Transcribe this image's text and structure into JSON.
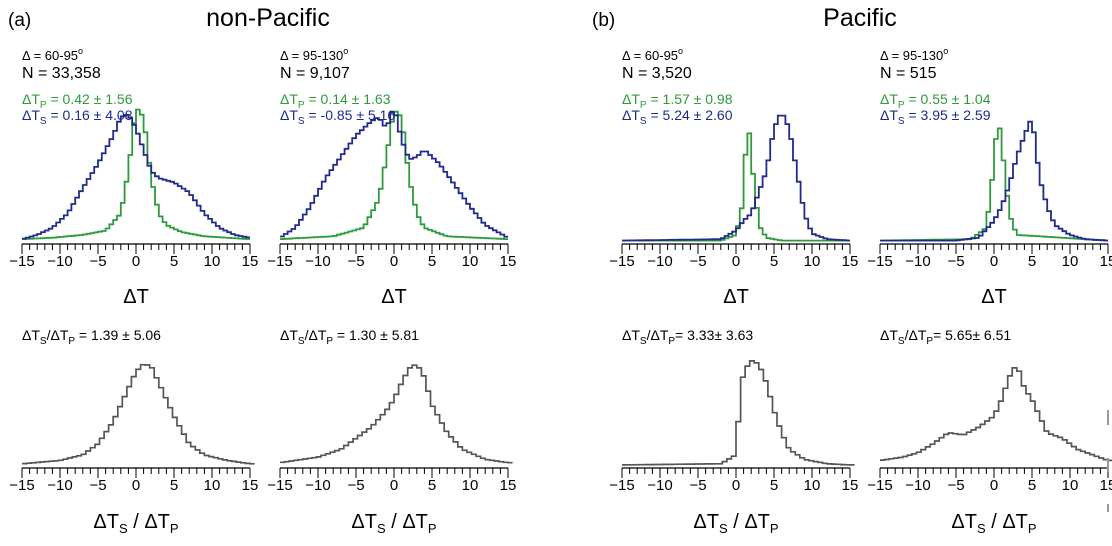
{
  "panels": [
    {
      "letter": "(a)",
      "title": "non-Pacific"
    },
    {
      "letter": "(b)",
      "title": "Pacific"
    }
  ],
  "colors": {
    "p": "#2e9a3c",
    "s": "#1f2a8a",
    "ratio": "#555555",
    "axis": "#000000"
  },
  "chart_data": [
    {
      "type": "line",
      "group": "non-Pacific",
      "annotations": [
        "Δ = 60-95°",
        "N = 33,358",
        "ΔTP = 0.42 ± 1.56",
        "ΔTS = 0.16 ± 4.08"
      ],
      "range_label": "Δ = 60-95",
      "range_deg": "o",
      "n_label": "N = 33,358",
      "p_stat": " = 0.42 ± 1.56",
      "s_stat": " = 0.16 ± 4.08",
      "xlabel": "ΔT",
      "xlim": [
        -15,
        15
      ],
      "xticks": [
        -15,
        -10,
        -5,
        0,
        5,
        10,
        15
      ],
      "series": [
        {
          "key": "P",
          "values": [
            [
              -15,
              0.02
            ],
            [
              -11,
              0.03
            ],
            [
              -7,
              0.05
            ],
            [
              -4,
              0.08
            ],
            [
              -2,
              0.2
            ],
            [
              -1,
              0.5
            ],
            [
              0,
              0.95
            ],
            [
              1,
              0.88
            ],
            [
              2,
              0.45
            ],
            [
              3,
              0.2
            ],
            [
              4,
              0.12
            ],
            [
              6,
              0.07
            ],
            [
              9,
              0.04
            ],
            [
              15,
              0.02
            ]
          ]
        },
        {
          "key": "S",
          "values": [
            [
              -15,
              0.02
            ],
            [
              -13,
              0.05
            ],
            [
              -11,
              0.1
            ],
            [
              -9,
              0.2
            ],
            [
              -7,
              0.38
            ],
            [
              -5,
              0.55
            ],
            [
              -3,
              0.75
            ],
            [
              -2,
              0.88
            ],
            [
              -1,
              0.9
            ],
            [
              0,
              0.8
            ],
            [
              1,
              0.65
            ],
            [
              2,
              0.5
            ],
            [
              3,
              0.45
            ],
            [
              5,
              0.42
            ],
            [
              7,
              0.35
            ],
            [
              9,
              0.2
            ],
            [
              11,
              0.1
            ],
            [
              13,
              0.05
            ],
            [
              15,
              0.03
            ]
          ]
        }
      ]
    },
    {
      "type": "line",
      "group": "non-Pacific",
      "annotations": [
        "Δ = 95-130°",
        "N = 9,107",
        "ΔTP = 0.14 ± 1.63",
        "ΔTS = -0.85 ± 5.16"
      ],
      "range_label": "Δ = 95-130",
      "range_deg": "o",
      "n_label": "N = 9,107",
      "p_stat": " = 0.14 ± 1.63",
      "s_stat": " = -0.85 ± 5.16",
      "xlabel": "ΔT",
      "xlim": [
        -15,
        15
      ],
      "xticks": [
        -15,
        -10,
        -5,
        0,
        5,
        10,
        15
      ],
      "series": [
        {
          "key": "P",
          "values": [
            [
              -15,
              0.02
            ],
            [
              -8,
              0.04
            ],
            [
              -4,
              0.1
            ],
            [
              -2,
              0.3
            ],
            [
              -1,
              0.6
            ],
            [
              0,
              0.93
            ],
            [
              1,
              0.88
            ],
            [
              2,
              0.45
            ],
            [
              3,
              0.2
            ],
            [
              4,
              0.1
            ],
            [
              7,
              0.04
            ],
            [
              15,
              0.02
            ]
          ]
        },
        {
          "key": "S",
          "values": [
            [
              -15,
              0.03
            ],
            [
              -13,
              0.1
            ],
            [
              -11,
              0.25
            ],
            [
              -9,
              0.45
            ],
            [
              -7,
              0.6
            ],
            [
              -5,
              0.75
            ],
            [
              -3,
              0.85
            ],
            [
              -2,
              0.88
            ],
            [
              -1,
              0.8
            ],
            [
              0,
              0.95
            ],
            [
              1,
              0.72
            ],
            [
              2,
              0.58
            ],
            [
              3,
              0.6
            ],
            [
              4,
              0.65
            ],
            [
              6,
              0.55
            ],
            [
              8,
              0.4
            ],
            [
              10,
              0.25
            ],
            [
              12,
              0.12
            ],
            [
              15,
              0.03
            ]
          ]
        }
      ]
    },
    {
      "type": "line",
      "group": "Pacific",
      "annotations": [
        "Δ = 60-95°",
        "N = 3,520",
        "ΔTP = 1.57 ± 0.98",
        "ΔTS = 5.24 ± 2.60"
      ],
      "range_label": "Δ = 60-95",
      "range_deg": "o",
      "n_label": "N = 3,520",
      "p_stat": " = 1.57 ± 0.98",
      "s_stat": " = 5.24 ± 2.60",
      "xlabel": "ΔT",
      "xlim": [
        -15,
        15
      ],
      "xticks": [
        -15,
        -10,
        -5,
        0,
        5,
        10,
        15
      ],
      "series": [
        {
          "key": "P",
          "values": [
            [
              -15,
              0.01
            ],
            [
              -2,
              0.01
            ],
            [
              0,
              0.05
            ],
            [
              1,
              0.3
            ],
            [
              1.5,
              0.93
            ],
            [
              2,
              0.6
            ],
            [
              3,
              0.12
            ],
            [
              4,
              0.03
            ],
            [
              6,
              0.01
            ],
            [
              15,
              0.01
            ]
          ]
        },
        {
          "key": "S",
          "values": [
            [
              -15,
              0.01
            ],
            [
              -2,
              0.02
            ],
            [
              0,
              0.08
            ],
            [
              1,
              0.15
            ],
            [
              2,
              0.2
            ],
            [
              3,
              0.35
            ],
            [
              4,
              0.5
            ],
            [
              5,
              0.8
            ],
            [
              6,
              0.92
            ],
            [
              7,
              0.8
            ],
            [
              8,
              0.5
            ],
            [
              9,
              0.2
            ],
            [
              10,
              0.06
            ],
            [
              12,
              0.02
            ],
            [
              15,
              0.01
            ]
          ]
        }
      ]
    },
    {
      "type": "line",
      "group": "Pacific",
      "annotations": [
        "Δ = 95-130°",
        "N = 515",
        "ΔTP = 0.55 ± 1.04",
        "ΔTS = 3.95 ± 2.59"
      ],
      "range_label": "Δ = 95-130",
      "range_deg": "o",
      "n_label": "N = 515",
      "p_stat": " = 0.55 ± 1.04",
      "s_stat": " = 3.95 ± 2.59",
      "xlabel": "ΔT",
      "xlim": [
        -15,
        15
      ],
      "xticks": [
        -15,
        -10,
        -5,
        0,
        5,
        10,
        15
      ],
      "series": [
        {
          "key": "P",
          "values": [
            [
              -15,
              0.01
            ],
            [
              -3,
              0.02
            ],
            [
              -1,
              0.1
            ],
            [
              0,
              0.55
            ],
            [
              0.5,
              0.9
            ],
            [
              1,
              0.7
            ],
            [
              2,
              0.2
            ],
            [
              3,
              0.05
            ],
            [
              15,
              0.01
            ]
          ]
        },
        {
          "key": "S",
          "values": [
            [
              -15,
              0.01
            ],
            [
              -5,
              0.01
            ],
            [
              -2,
              0.03
            ],
            [
              0,
              0.15
            ],
            [
              1,
              0.25
            ],
            [
              2,
              0.4
            ],
            [
              3,
              0.6
            ],
            [
              4,
              0.75
            ],
            [
              5,
              0.88
            ],
            [
              6,
              0.45
            ],
            [
              7,
              0.25
            ],
            [
              8,
              0.12
            ],
            [
              10,
              0.05
            ],
            [
              12,
              0.02
            ],
            [
              15,
              0.01
            ]
          ]
        }
      ]
    },
    {
      "type": "line",
      "group": "non-Pacific",
      "ratio_stat": " = 1.39 ± 5.06",
      "xlabel": "ΔTS / ΔTP",
      "xlim": [
        -15,
        15
      ],
      "xticks": [
        -15,
        -10,
        -5,
        0,
        5,
        10,
        15
      ],
      "series": [
        {
          "key": "ratio",
          "values": [
            [
              -15,
              0.02
            ],
            [
              -10,
              0.05
            ],
            [
              -7,
              0.1
            ],
            [
              -5,
              0.2
            ],
            [
              -3,
              0.4
            ],
            [
              -1,
              0.7
            ],
            [
              0,
              0.85
            ],
            [
              1,
              0.92
            ],
            [
              2,
              0.9
            ],
            [
              3,
              0.75
            ],
            [
              5,
              0.45
            ],
            [
              7,
              0.2
            ],
            [
              9,
              0.1
            ],
            [
              12,
              0.05
            ],
            [
              15,
              0.02
            ]
          ]
        }
      ]
    },
    {
      "type": "line",
      "group": "non-Pacific",
      "ratio_stat": " = 1.30 ± 5.81",
      "xlabel": "ΔTS / ΔTP",
      "xlim": [
        -15,
        15
      ],
      "xticks": [
        -15,
        -10,
        -5,
        0,
        5,
        10,
        15
      ],
      "series": [
        {
          "key": "ratio",
          "values": [
            [
              -15,
              0.03
            ],
            [
              -10,
              0.08
            ],
            [
              -7,
              0.15
            ],
            [
              -5,
              0.25
            ],
            [
              -3,
              0.35
            ],
            [
              -1,
              0.5
            ],
            [
              0,
              0.6
            ],
            [
              1,
              0.75
            ],
            [
              2,
              0.88
            ],
            [
              3,
              0.92
            ],
            [
              4,
              0.8
            ],
            [
              5,
              0.55
            ],
            [
              7,
              0.3
            ],
            [
              9,
              0.15
            ],
            [
              12,
              0.06
            ],
            [
              15,
              0.03
            ]
          ]
        }
      ]
    },
    {
      "type": "line",
      "group": "Pacific",
      "ratio_stat": "= 3.33± 3.63",
      "xlabel": "ΔTS / ΔTP",
      "xlim": [
        -15,
        15
      ],
      "xticks": [
        -15,
        -10,
        -5,
        0,
        5,
        10,
        15
      ],
      "series": [
        {
          "key": "ratio",
          "values": [
            [
              -15,
              0.01
            ],
            [
              -2,
              0.02
            ],
            [
              0,
              0.1
            ],
            [
              0.5,
              0.6
            ],
            [
              1,
              0.85
            ],
            [
              2,
              0.95
            ],
            [
              3,
              0.92
            ],
            [
              4,
              0.75
            ],
            [
              5,
              0.5
            ],
            [
              6,
              0.3
            ],
            [
              7,
              0.15
            ],
            [
              9,
              0.06
            ],
            [
              12,
              0.02
            ],
            [
              15,
              0.01
            ]
          ]
        }
      ]
    },
    {
      "type": "line",
      "group": "Pacific",
      "ratio_stat": "= 5.65± 6.51",
      "xlabel": "ΔTS / ΔTP",
      "xlim": [
        -15,
        15
      ],
      "xticks": [
        -15,
        -10,
        -5,
        0,
        5,
        10,
        15
      ],
      "series": [
        {
          "key": "ratio",
          "values": [
            [
              -15,
              0.05
            ],
            [
              -12,
              0.08
            ],
            [
              -10,
              0.12
            ],
            [
              -8,
              0.2
            ],
            [
              -6,
              0.3
            ],
            [
              -4,
              0.28
            ],
            [
              -2,
              0.35
            ],
            [
              0,
              0.45
            ],
            [
              1,
              0.6
            ],
            [
              2,
              0.8
            ],
            [
              3,
              0.92
            ],
            [
              4,
              0.7
            ],
            [
              5,
              0.6
            ],
            [
              6,
              0.45
            ],
            [
              7,
              0.3
            ],
            [
              9,
              0.25
            ],
            [
              11,
              0.15
            ],
            [
              13,
              0.1
            ],
            [
              15,
              0.05
            ]
          ]
        }
      ]
    }
  ]
}
